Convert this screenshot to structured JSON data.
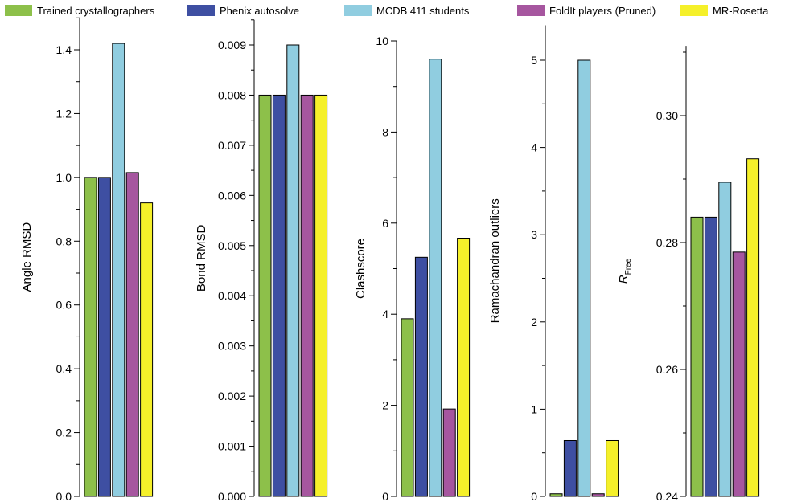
{
  "legend": [
    {
      "name": "Trained crystallographers",
      "color": "#8dc04a"
    },
    {
      "name": "Phenix autosolve",
      "color": "#3e4fa2"
    },
    {
      "name": "MCDB 411 students",
      "color": "#90cde0"
    },
    {
      "name": "FoldIt players (Pruned)",
      "color": "#a6569f"
    },
    {
      "name": "MR-Rosetta",
      "color": "#f5f02a"
    }
  ],
  "chart_data": [
    {
      "type": "bar",
      "categories": [
        "Trained crystallographers",
        "Phenix autosolve",
        "MCDB 411 students",
        "FoldIt players (Pruned)",
        "MR-Rosetta"
      ],
      "values": [
        1.0,
        1.0,
        1.42,
        1.015,
        0.92
      ],
      "ylabel": "Angle RMSD",
      "ylim": [
        0,
        1.5
      ],
      "yticks": [
        "0.0",
        "0.2",
        "0.4",
        "0.6",
        "0.8",
        "1.0",
        "1.2",
        "1.4"
      ]
    },
    {
      "type": "bar",
      "categories": [
        "Trained crystallographers",
        "Phenix autosolve",
        "MCDB 411 students",
        "FoldIt players (Pruned)",
        "MR-Rosetta"
      ],
      "values": [
        0.008,
        0.008,
        0.009,
        0.008,
        0.008
      ],
      "ylabel": "Bond RMSD",
      "ylim": [
        0,
        0.0095
      ],
      "yticks": [
        "0.000",
        "0.001",
        "0.002",
        "0.003",
        "0.004",
        "0.005",
        "0.006",
        "0.007",
        "0.008",
        "0.009"
      ]
    },
    {
      "type": "bar",
      "categories": [
        "Trained crystallographers",
        "Phenix autosolve",
        "MCDB 411 students",
        "FoldIt players (Pruned)",
        "MR-Rosetta"
      ],
      "values": [
        3.9,
        5.25,
        9.6,
        1.92,
        5.67
      ],
      "ylabel": "Clashscore",
      "ylim": [
        0,
        10
      ],
      "yticks": [
        "0",
        "2",
        "4",
        "6",
        "8",
        "10"
      ]
    },
    {
      "type": "bar",
      "categories": [
        "Trained crystallographers",
        "Phenix autosolve",
        "MCDB 411 students",
        "FoldIt players (Pruned)",
        "MR-Rosetta"
      ],
      "values": [
        0.03,
        0.64,
        5.0,
        0.03,
        0.64
      ],
      "ylabel": "Ramachandran outliers",
      "ylim": [
        0,
        5.4
      ],
      "yticks": [
        "0",
        "1",
        "2",
        "3",
        "4",
        "5"
      ]
    },
    {
      "type": "bar",
      "categories": [
        "Trained crystallographers",
        "Phenix autosolve",
        "MCDB 411 students",
        "FoldIt players (Pruned)",
        "MR-Rosetta"
      ],
      "values": [
        0.284,
        0.284,
        0.2895,
        0.2785,
        0.2932
      ],
      "ylabel": "R",
      "ylabel_sub": "Free",
      "ylim": [
        0.24,
        0.311
      ],
      "yticks": [
        "0.24",
        "0.26",
        "0.28",
        "0.30"
      ]
    }
  ]
}
